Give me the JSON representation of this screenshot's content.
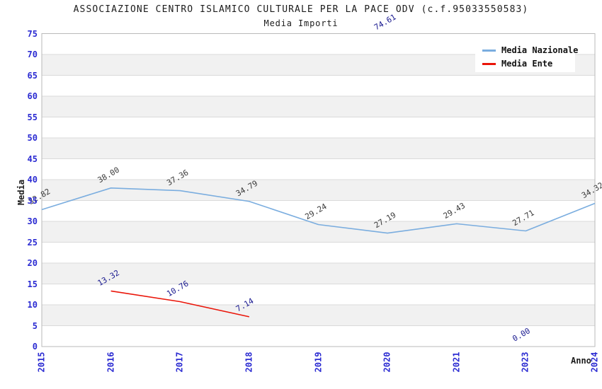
{
  "header": {
    "title": "ASSOCIAZIONE CENTRO ISLAMICO CULTURALE PER LA PACE ODV (c.f.95033550583)",
    "subtitle": "Media Importi"
  },
  "axes": {
    "y_title": "Media",
    "x_title": "Anno"
  },
  "style": {
    "tick_label_color": "#2b2bd2",
    "band_color": "#f1f1f1",
    "grid_color": "#dadada",
    "border_color": "#b9b9b9",
    "background": "#ffffff"
  },
  "chart_data": {
    "type": "line",
    "title": "ASSOCIAZIONE CENTRO ISLAMICO CULTURALE PER LA PACE ODV (c.f.95033550583)",
    "subtitle": "Media Importi",
    "xlabel": "Anno",
    "ylabel": "Media",
    "ylim": [
      0,
      75
    ],
    "ytick_step": 5,
    "grid": "horizontal gridlines with alternating gray bands every 5 units",
    "legend_position": "top-right",
    "categories": [
      "2015",
      "2016",
      "2017",
      "2018",
      "2019",
      "2020",
      "2021",
      "2023",
      "2024"
    ],
    "series": [
      {
        "name": "Media Nazionale",
        "color": "#7aaddf",
        "label_color": "#3a3a3a",
        "values": [
          32.82,
          38.0,
          37.36,
          34.79,
          29.24,
          27.19,
          29.43,
          27.71,
          34.32
        ]
      },
      {
        "name": "Media Ente",
        "color": "#ea1509",
        "label_color": "#18188f",
        "values": [
          null,
          13.32,
          10.76,
          7.14,
          null,
          74.61,
          null,
          0.0,
          null
        ]
      }
    ]
  }
}
